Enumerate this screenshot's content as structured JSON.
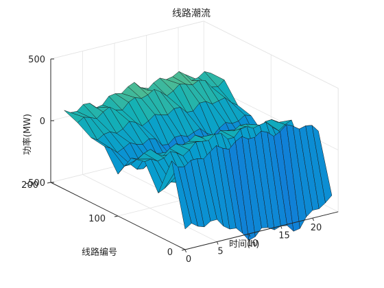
{
  "chart_data": {
    "type": "surface",
    "title": "线路潮流",
    "xlabel": "时间(h)",
    "ylabel": "线路编号",
    "zlabel": "功率(MW)",
    "xlim": [
      0,
      24
    ],
    "ylim": [
      0,
      200
    ],
    "zlim": [
      -500,
      500
    ],
    "x_ticks": [
      "0",
      "5",
      "10",
      "15",
      "20"
    ],
    "y_ticks": [
      "0",
      "100",
      "200"
    ],
    "z_ticks": [
      "-500",
      "0",
      "500"
    ],
    "x_tick_values": [
      0,
      5,
      10,
      15,
      20
    ],
    "y_tick_values": [
      0,
      100,
      200
    ],
    "z_tick_values": [
      -500,
      0,
      500
    ],
    "line_axis": [
      0,
      20,
      40,
      60,
      80,
      100,
      120,
      140,
      160,
      180
    ],
    "power_base": [
      -470,
      180,
      -150,
      90,
      40,
      -200,
      -60,
      60,
      160,
      170
    ],
    "daily_shape": [
      0.82,
      0.8,
      0.78,
      0.76,
      0.77,
      0.8,
      0.86,
      0.93,
      0.99,
      1.03,
      1.06,
      1.07,
      1.05,
      1.04,
      1.06,
      1.08,
      1.09,
      1.1,
      1.08,
      1.04,
      0.99,
      0.94,
      0.9,
      0.86
    ],
    "colormap": "parula",
    "grid": true
  }
}
